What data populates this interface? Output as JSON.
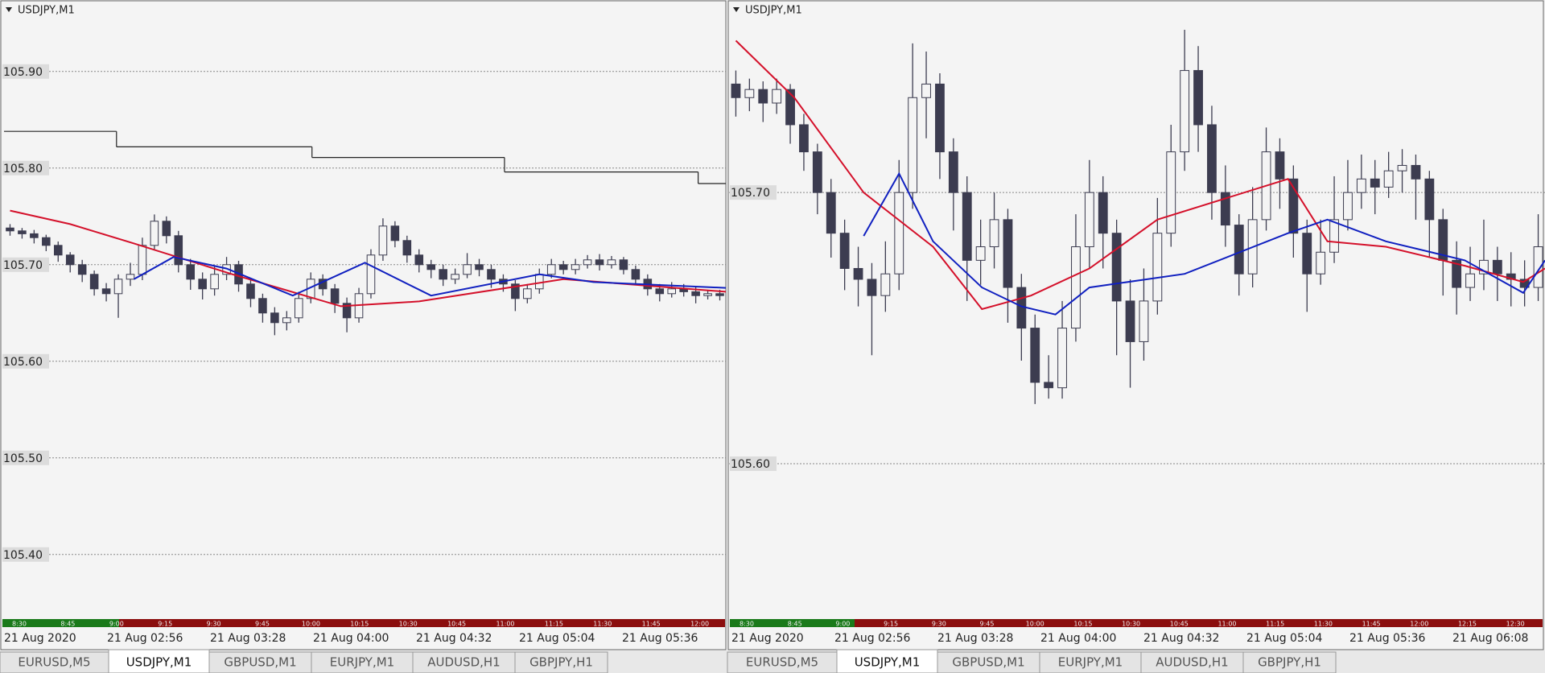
{
  "chart_data": [
    {
      "type": "candlestick",
      "title": "USDJPY,M1",
      "ylim": [
        105.334,
        105.974
      ],
      "yticks": [
        {
          "value": 105.4,
          "label": "105.40"
        },
        {
          "value": 105.5,
          "label": "105.50"
        },
        {
          "value": 105.6,
          "label": "105.60"
        },
        {
          "value": 105.7,
          "label": "105.70"
        },
        {
          "value": 105.8,
          "label": "105.80"
        },
        {
          "value": 105.9,
          "label": "105.90"
        }
      ],
      "grid": true,
      "color": "#3c3c50",
      "candles": [
        [
          105.738,
          105.742,
          105.73,
          105.735
        ],
        [
          105.735,
          105.738,
          105.727,
          105.732
        ],
        [
          105.732,
          105.736,
          105.722,
          105.728
        ],
        [
          105.728,
          105.731,
          105.714,
          105.72
        ],
        [
          105.72,
          105.724,
          105.703,
          105.71
        ],
        [
          105.71,
          105.713,
          105.692,
          105.7
        ],
        [
          105.7,
          105.705,
          105.682,
          105.69
        ],
        [
          105.69,
          105.694,
          105.668,
          105.675
        ],
        [
          105.675,
          105.681,
          105.662,
          105.67
        ],
        [
          105.67,
          105.69,
          105.645,
          105.685
        ],
        [
          105.685,
          105.702,
          105.678,
          105.69
        ],
        [
          105.69,
          105.728,
          105.684,
          105.72
        ],
        [
          105.72,
          105.752,
          105.715,
          105.745
        ],
        [
          105.745,
          105.75,
          105.722,
          105.73
        ],
        [
          105.73,
          105.735,
          105.692,
          105.7
        ],
        [
          105.7,
          105.706,
          105.674,
          105.685
        ],
        [
          105.685,
          105.692,
          105.664,
          105.675
        ],
        [
          105.675,
          105.698,
          105.668,
          105.69
        ],
        [
          105.69,
          105.708,
          105.684,
          105.7
        ],
        [
          105.7,
          105.704,
          105.672,
          105.68
        ],
        [
          105.68,
          105.686,
          105.656,
          105.665
        ],
        [
          105.665,
          105.67,
          105.64,
          105.65
        ],
        [
          105.65,
          105.656,
          105.627,
          105.64
        ],
        [
          105.64,
          105.652,
          105.632,
          105.645
        ],
        [
          105.645,
          105.672,
          105.64,
          105.665
        ],
        [
          105.665,
          105.692,
          105.66,
          105.685
        ],
        [
          105.685,
          105.69,
          105.668,
          105.675
        ],
        [
          105.675,
          105.68,
          105.65,
          105.66
        ],
        [
          105.66,
          105.666,
          105.63,
          105.645
        ],
        [
          105.645,
          105.676,
          105.64,
          105.67
        ],
        [
          105.67,
          105.716,
          105.665,
          105.71
        ],
        [
          105.71,
          105.748,
          105.704,
          105.74
        ],
        [
          105.74,
          105.745,
          105.718,
          105.725
        ],
        [
          105.725,
          105.73,
          105.702,
          105.71
        ],
        [
          105.71,
          105.716,
          105.692,
          105.7
        ],
        [
          105.7,
          105.705,
          105.686,
          105.695
        ],
        [
          105.695,
          105.7,
          105.678,
          105.685
        ],
        [
          105.685,
          105.696,
          105.68,
          105.69
        ],
        [
          105.69,
          105.712,
          105.686,
          105.7
        ],
        [
          105.7,
          105.706,
          105.688,
          105.695
        ],
        [
          105.695,
          105.7,
          105.676,
          105.685
        ],
        [
          105.685,
          105.69,
          105.672,
          105.68
        ],
        [
          105.68,
          105.684,
          105.652,
          105.665
        ],
        [
          105.665,
          105.68,
          105.66,
          105.675
        ],
        [
          105.675,
          105.696,
          105.67,
          105.69
        ],
        [
          105.69,
          105.706,
          105.686,
          105.7
        ],
        [
          105.7,
          105.704,
          105.69,
          105.695
        ],
        [
          105.695,
          105.706,
          105.69,
          105.7
        ],
        [
          105.7,
          105.71,
          105.696,
          105.705
        ],
        [
          105.705,
          105.711,
          105.694,
          105.7
        ],
        [
          105.7,
          105.709,
          105.696,
          105.705
        ],
        [
          105.705,
          105.708,
          105.69,
          105.695
        ],
        [
          105.695,
          105.699,
          105.68,
          105.685
        ],
        [
          105.685,
          105.69,
          105.668,
          105.675
        ],
        [
          105.675,
          105.68,
          105.662,
          105.67
        ],
        [
          105.67,
          105.682,
          105.666,
          105.675
        ],
        [
          105.675,
          105.68,
          105.667,
          105.672
        ],
        [
          105.672,
          105.677,
          105.66,
          105.668
        ],
        [
          105.668,
          105.674,
          105.664,
          105.67
        ],
        [
          105.67,
          105.674,
          105.663,
          105.668
        ]
      ],
      "lines": [
        {
          "color": "#d4102a",
          "x": [
            0,
            5,
            10.3,
            18.5,
            27.5,
            34,
            46,
            59.5
          ],
          "values": [
            105.756,
            105.742,
            105.722,
            105.69,
            105.657,
            105.662,
            105.685,
            105.672
          ]
        },
        {
          "color": "#1020c0",
          "x": [
            10.3,
            13.6,
            18,
            23.5,
            29.5,
            35,
            44,
            48.5,
            59.5
          ],
          "values": [
            105.685,
            105.708,
            105.696,
            105.668,
            105.702,
            105.668,
            105.69,
            105.682,
            105.676
          ]
        }
      ],
      "step": {
        "color": "#222222",
        "x_start": [
          0,
          9.35,
          25.6,
          41.6,
          57.7
        ],
        "x_end": [
          9.35,
          25.6,
          41.6,
          57.7,
          60
        ],
        "values": [
          105.838,
          105.822,
          105.811,
          105.796,
          105.784
        ]
      },
      "time_labels": [
        "21 Aug 2020",
        "21 Aug 02:56",
        "21 Aug 03:28",
        "21 Aug 04:00",
        "21 Aug 04:32",
        "21 Aug 05:04",
        "21 Aug 05:36"
      ],
      "session_labels": [
        "8:30",
        "8:45",
        "9:00",
        "9:15",
        "9:30",
        "9:45",
        "10:00",
        "10:15",
        "10:30",
        "10:45",
        "11:00",
        "11:15",
        "11:30",
        "11:45",
        "12:00"
      ],
      "tabs": [
        "EURUSD,M5",
        "USDJPY,M1",
        "GBPUSD,M1",
        "EURJPY,M1",
        "AUDUSD,H1",
        "GBPJPY,H1"
      ],
      "active_tab": 1
    },
    {
      "type": "candlestick",
      "title": "USDJPY,M1",
      "ylim": [
        105.543,
        105.771
      ],
      "yticks": [
        {
          "value": 105.6,
          "label": "105.60"
        },
        {
          "value": 105.7,
          "label": "105.70"
        }
      ],
      "grid": true,
      "color": "#3c3c50",
      "candles": [
        [
          105.74,
          105.745,
          105.728,
          105.735
        ],
        [
          105.735,
          105.742,
          105.73,
          105.738
        ],
        [
          105.738,
          105.741,
          105.726,
          105.733
        ],
        [
          105.733,
          105.742,
          105.729,
          105.738
        ],
        [
          105.738,
          105.74,
          105.718,
          105.725
        ],
        [
          105.725,
          105.729,
          105.708,
          105.715
        ],
        [
          105.715,
          105.718,
          105.692,
          105.7
        ],
        [
          105.7,
          105.705,
          105.676,
          105.685
        ],
        [
          105.685,
          105.69,
          105.664,
          105.672
        ],
        [
          105.672,
          105.68,
          105.658,
          105.668
        ],
        [
          105.668,
          105.674,
          105.64,
          105.662
        ],
        [
          105.662,
          105.682,
          105.656,
          105.67
        ],
        [
          105.67,
          105.712,
          105.664,
          105.7
        ],
        [
          105.7,
          105.755,
          105.694,
          105.735
        ],
        [
          105.735,
          105.752,
          105.72,
          105.74
        ],
        [
          105.74,
          105.744,
          105.705,
          105.715
        ],
        [
          105.715,
          105.72,
          105.686,
          105.7
        ],
        [
          105.7,
          105.706,
          105.66,
          105.675
        ],
        [
          105.675,
          105.69,
          105.666,
          105.68
        ],
        [
          105.68,
          105.7,
          105.672,
          105.69
        ],
        [
          105.69,
          105.694,
          105.652,
          105.665
        ],
        [
          105.665,
          105.67,
          105.638,
          105.65
        ],
        [
          105.65,
          105.655,
          105.622,
          105.63
        ],
        [
          105.63,
          105.64,
          105.624,
          105.628
        ],
        [
          105.628,
          105.66,
          105.624,
          105.65
        ],
        [
          105.65,
          105.692,
          105.645,
          105.68
        ],
        [
          105.68,
          105.712,
          105.672,
          105.7
        ],
        [
          105.7,
          105.706,
          105.672,
          105.685
        ],
        [
          105.685,
          105.69,
          105.64,
          105.66
        ],
        [
          105.66,
          105.668,
          105.628,
          105.645
        ],
        [
          105.645,
          105.672,
          105.638,
          105.66
        ],
        [
          105.66,
          105.698,
          105.655,
          105.685
        ],
        [
          105.685,
          105.725,
          105.68,
          105.715
        ],
        [
          105.715,
          105.76,
          105.708,
          105.745
        ],
        [
          105.745,
          105.754,
          105.715,
          105.725
        ],
        [
          105.725,
          105.732,
          105.69,
          105.7
        ],
        [
          105.7,
          105.71,
          105.68,
          105.688
        ],
        [
          105.688,
          105.692,
          105.662,
          105.67
        ],
        [
          105.67,
          105.702,
          105.665,
          105.69
        ],
        [
          105.69,
          105.724,
          105.686,
          105.715
        ],
        [
          105.715,
          105.72,
          105.694,
          105.705
        ],
        [
          105.705,
          105.71,
          105.676,
          105.685
        ],
        [
          105.685,
          105.69,
          105.656,
          105.67
        ],
        [
          105.67,
          105.69,
          105.666,
          105.678
        ],
        [
          105.678,
          105.706,
          105.674,
          105.69
        ],
        [
          105.69,
          105.712,
          105.686,
          105.7
        ],
        [
          105.7,
          105.714,
          105.694,
          105.705
        ],
        [
          105.705,
          105.712,
          105.692,
          105.702
        ],
        [
          105.702,
          105.715,
          105.698,
          105.708
        ],
        [
          105.708,
          105.716,
          105.7,
          105.71
        ],
        [
          105.71,
          105.714,
          105.69,
          105.705
        ],
        [
          105.705,
          105.708,
          105.676,
          105.69
        ],
        [
          105.69,
          105.694,
          105.662,
          105.675
        ],
        [
          105.675,
          105.682,
          105.655,
          105.665
        ],
        [
          105.665,
          105.68,
          105.66,
          105.67
        ],
        [
          105.67,
          105.69,
          105.664,
          105.675
        ],
        [
          105.675,
          105.68,
          105.66,
          105.67
        ],
        [
          105.67,
          105.678,
          105.658,
          105.668
        ],
        [
          105.668,
          105.675,
          105.658,
          105.665
        ],
        [
          105.665,
          105.692,
          105.66,
          105.68
        ]
      ],
      "lines": [
        {
          "color": "#d4102a",
          "x": [
            0,
            4.3,
            9.4,
            14.5,
            18.1,
            21.7,
            26,
            31,
            40.6,
            43.5,
            47.8,
            53.6,
            57.9,
            59.5
          ],
          "values": [
            105.756,
            105.735,
            105.7,
            105.68,
            105.657,
            105.662,
            105.672,
            105.69,
            105.705,
            105.682,
            105.68,
            105.673,
            105.667,
            105.672
          ]
        },
        {
          "color": "#1020c0",
          "x": [
            9.4,
            12,
            14.5,
            18.1,
            21,
            23.5,
            26,
            33,
            40.6,
            43.5,
            47.8,
            53.6,
            57.9,
            59.5
          ],
          "values": [
            105.684,
            105.707,
            105.682,
            105.665,
            105.658,
            105.655,
            105.665,
            105.67,
            105.685,
            105.69,
            105.682,
            105.675,
            105.663,
            105.675
          ]
        }
      ],
      "time_labels": [
        "21 Aug 2020",
        "21 Aug 02:56",
        "21 Aug 03:28",
        "21 Aug 04:00",
        "21 Aug 04:32",
        "21 Aug 05:04",
        "21 Aug 05:36",
        "21 Aug 06:08"
      ],
      "session_labels": [
        "8:30",
        "8:45",
        "9:00",
        "9:15",
        "9:30",
        "9:45",
        "10:00",
        "10:15",
        "10:30",
        "10:45",
        "11:00",
        "11:15",
        "11:30",
        "11:45",
        "12:00",
        "12:15",
        "12:30"
      ],
      "tabs": [
        "EURUSD,M5",
        "USDJPY,M1",
        "GBPUSD,M1",
        "EURJPY,M1",
        "AUDUSD,H1",
        "GBPJPY,H1"
      ],
      "active_tab": 1
    }
  ]
}
